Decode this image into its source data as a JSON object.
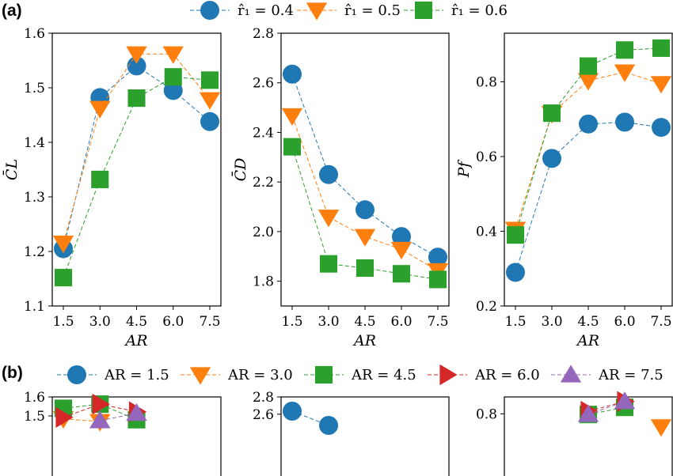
{
  "panel_labels": [
    "(a)",
    "(b)"
  ],
  "legend_a": [
    {
      "label": "r̂₁ = 0.4",
      "color": "#1f77b4",
      "marker": "circle"
    },
    {
      "label": "r̂₁ = 0.5",
      "color": "#ff7f0e",
      "marker": "triangle-down"
    },
    {
      "label": "r̂₁ = 0.6",
      "color": "#2ca02c",
      "marker": "square"
    }
  ],
  "legend_b": [
    {
      "label": "AR = 1.5",
      "color": "#1f77b4",
      "marker": "circle"
    },
    {
      "label": "AR = 3.0",
      "color": "#ff7f0e",
      "marker": "triangle-down"
    },
    {
      "label": "AR = 4.5",
      "color": "#2ca02c",
      "marker": "square"
    },
    {
      "label": "AR = 6.0",
      "color": "#d62728",
      "marker": "triangle-right"
    },
    {
      "label": "AR = 7.5",
      "color": "#9467bd",
      "marker": "triangle-up"
    }
  ],
  "chart_data": [
    {
      "type": "line",
      "panel": "a",
      "ylabel": "C̄L",
      "xlabel": "AR",
      "categories": [
        "1.5",
        "3.0",
        "4.5",
        "6.0",
        "7.5"
      ],
      "ylim": [
        1.1,
        1.6
      ],
      "yticks": [
        "1.1",
        "1.2",
        "1.3",
        "1.4",
        "1.5",
        "1.6"
      ],
      "series": [
        {
          "name": "r̂₁ = 0.4",
          "values": [
            1.205,
            1.482,
            1.54,
            1.495,
            1.438
          ]
        },
        {
          "name": "r̂₁ = 0.5",
          "values": [
            1.215,
            1.462,
            1.562,
            1.562,
            1.478
          ]
        },
        {
          "name": "r̂₁ = 0.6",
          "values": [
            1.152,
            1.332,
            1.481,
            1.52,
            1.514
          ]
        }
      ]
    },
    {
      "type": "line",
      "panel": "a",
      "ylabel": "C̄D",
      "xlabel": "AR",
      "categories": [
        "1.5",
        "3.0",
        "4.5",
        "6.0",
        "7.5"
      ],
      "ylim": [
        1.7,
        2.8
      ],
      "yticks": [
        "1.8",
        "2.0",
        "2.2",
        "2.4",
        "2.6",
        "2.8"
      ],
      "series": [
        {
          "name": "r̂₁ = 0.4",
          "values": [
            2.635,
            2.23,
            2.088,
            1.98,
            1.897
          ]
        },
        {
          "name": "r̂₁ = 0.5",
          "values": [
            2.467,
            2.058,
            1.98,
            1.928,
            1.842
          ]
        },
        {
          "name": "r̂₁ = 0.6",
          "values": [
            2.342,
            1.87,
            1.853,
            1.83,
            1.807
          ]
        }
      ]
    },
    {
      "type": "line",
      "panel": "a",
      "ylabel": "Pf",
      "xlabel": "AR",
      "categories": [
        "1.5",
        "3.0",
        "4.5",
        "6.0",
        "7.5"
      ],
      "ylim": [
        0.2,
        0.93
      ],
      "yticks": [
        "0.2",
        "0.4",
        "0.6",
        "0.8"
      ],
      "series": [
        {
          "name": "r̂₁ = 0.4",
          "values": [
            0.29,
            0.595,
            0.687,
            0.692,
            0.678
          ]
        },
        {
          "name": "r̂₁ = 0.5",
          "values": [
            0.405,
            0.715,
            0.803,
            0.826,
            0.795
          ]
        },
        {
          "name": "r̂₁ = 0.6",
          "values": [
            0.39,
            0.716,
            0.842,
            0.885,
            0.89
          ]
        }
      ]
    },
    {
      "type": "line",
      "panel": "b",
      "ylabel": "",
      "xlabel": "",
      "ylim": [
        1.1,
        1.6
      ],
      "yticks": [
        "1.5",
        "1.6"
      ],
      "series": [
        {
          "name": "AR = 1.5",
          "values": []
        },
        {
          "name": "AR = 3.0",
          "values": [
            1.485,
            1.47
          ]
        },
        {
          "name": "AR = 4.5",
          "values": [
            1.54,
            1.562,
            1.48
          ]
        },
        {
          "name": "AR = 6.0",
          "values": [
            1.492,
            1.562,
            1.522
          ]
        },
        {
          "name": "AR = 7.5",
          "values": [
            1.475,
            1.514
          ]
        }
      ]
    },
    {
      "type": "line",
      "panel": "b",
      "ylabel": "",
      "xlabel": "",
      "ylim": [
        1.7,
        2.8
      ],
      "yticks": [
        "2.6",
        "2.8"
      ],
      "series": [
        {
          "name": "AR = 1.5",
          "values": [
            2.635,
            2.47
          ]
        }
      ]
    },
    {
      "type": "line",
      "panel": "b",
      "ylabel": "",
      "xlabel": "",
      "ylim": [
        0.2,
        0.93
      ],
      "yticks": [
        "0.8"
      ],
      "series": [
        {
          "name": "AR = 3.0",
          "values": [
            0.7
          ]
        },
        {
          "name": "AR = 4.5",
          "values": [
            0.795,
            0.85
          ]
        },
        {
          "name": "AR = 6.0",
          "values": [
            0.82,
            0.895
          ]
        },
        {
          "name": "AR = 7.5",
          "values": [
            0.795,
            0.895
          ]
        }
      ]
    }
  ]
}
